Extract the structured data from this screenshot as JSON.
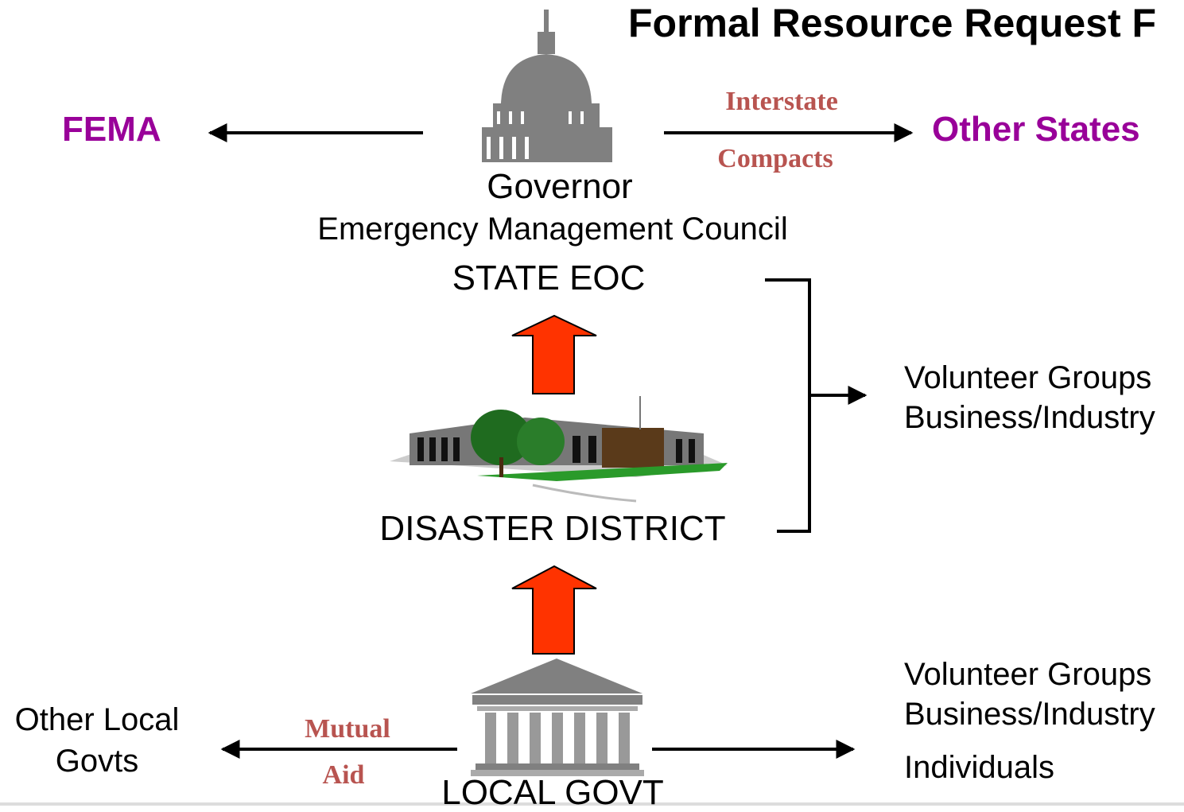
{
  "title": "Formal Resource Request F",
  "fema": "FEMA",
  "other_states": "Other States",
  "interstate_compacts": [
    "Interstate",
    "Compacts"
  ],
  "governor": "Governor",
  "council": "Emergency Management Council",
  "state_eoc": "STATE EOC",
  "disaster_district": "DISASTER DISTRICT",
  "state_resources": [
    "Volunteer Groups",
    "Business/Industry"
  ],
  "local_govt": "LOCAL GOVT",
  "other_local_govts": [
    "Other Local",
    "Govts"
  ],
  "mutual_aid": [
    "Mutual",
    "Aid"
  ],
  "local_resources": [
    "Volunteer Groups",
    "Business/Industry",
    "Individuals"
  ]
}
